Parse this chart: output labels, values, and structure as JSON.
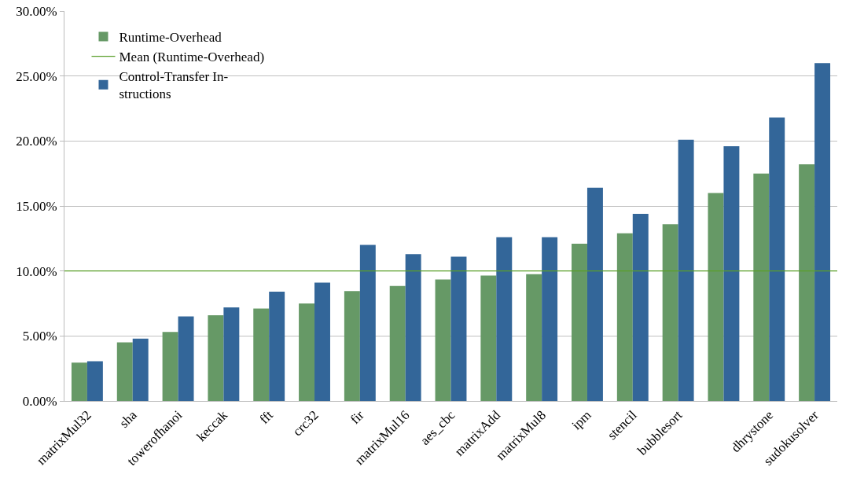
{
  "chart_data": {
    "type": "bar",
    "categories": [
      "matrixMul32",
      "sha",
      "towerofhanoi",
      "keccak",
      "fft",
      "crc32",
      "fir",
      "matrixMul16",
      "aes_cbc",
      "matrixAdd",
      "matrixMul8",
      "ipm",
      "stencil",
      "bubblesort",
      null,
      "dhrystone",
      "sudokusolver"
    ],
    "series": [
      {
        "name": "Runtime-Overhead",
        "color": "#669966",
        "values": [
          2.95,
          4.5,
          5.3,
          6.6,
          7.1,
          7.5,
          8.45,
          8.85,
          9.35,
          9.65,
          9.75,
          12.1,
          12.9,
          13.6,
          16.0,
          17.5,
          18.2
        ]
      },
      {
        "name": "Control-Transfer In-\nstructions",
        "color": "#336699",
        "values": [
          3.05,
          4.8,
          6.5,
          7.2,
          8.4,
          9.1,
          12.0,
          11.3,
          11.1,
          12.6,
          12.6,
          16.4,
          14.4,
          20.1,
          19.6,
          21.8,
          26.0
        ]
      }
    ],
    "ref_lines": [
      {
        "axis": "y",
        "value": 10,
        "label": "Mean (Runtime-Overhead)",
        "color": "#5a9e2a",
        "line_style": "solid"
      }
    ],
    "ylim": [
      0,
      30
    ],
    "yticks": [
      {
        "value": 0,
        "label": "0.00%"
      },
      {
        "value": 5,
        "label": "5.00%"
      },
      {
        "value": 10,
        "label": "10.00%"
      },
      {
        "value": 15,
        "label": "15.00%"
      },
      {
        "value": 20,
        "label": "20.00%"
      },
      {
        "value": 25,
        "label": "25.00%"
      },
      {
        "value": 30,
        "label": "30.00%"
      }
    ],
    "grid": "y",
    "legend": "top left"
  }
}
